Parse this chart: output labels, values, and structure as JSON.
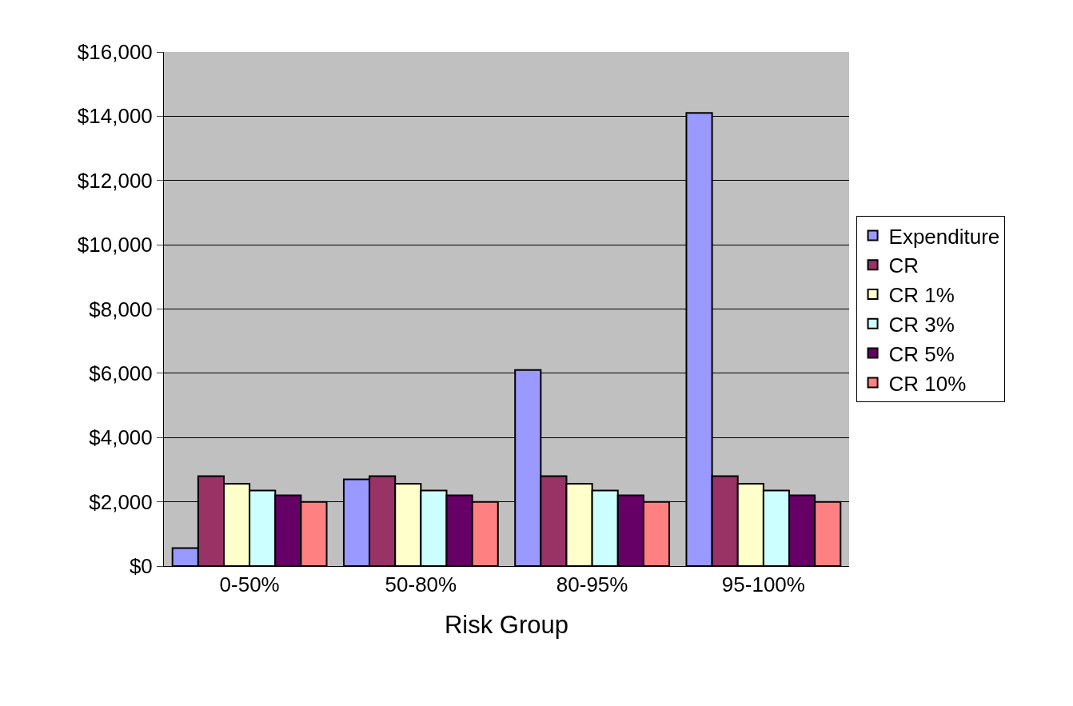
{
  "chart_data": {
    "type": "bar",
    "xlabel": "Risk Group",
    "categories": [
      "0-50%",
      "50-80%",
      "80-95%",
      "95-100%"
    ],
    "series": [
      {
        "name": "Expenditure",
        "color": "#9999ff",
        "values": [
          560,
          2700,
          6100,
          14100
        ]
      },
      {
        "name": "CR",
        "color": "#993366",
        "values": [
          2800,
          2800,
          2800,
          2800
        ]
      },
      {
        "name": "CR 1%",
        "color": "#ffffcc",
        "values": [
          2560,
          2560,
          2560,
          2560
        ]
      },
      {
        "name": "CR 3%",
        "color": "#ccffff",
        "values": [
          2350,
          2350,
          2350,
          2350
        ]
      },
      {
        "name": "CR 5%",
        "color": "#660066",
        "values": [
          2200,
          2200,
          2200,
          2200
        ]
      },
      {
        "name": "CR 10%",
        "color": "#ff8080",
        "values": [
          2000,
          2000,
          2000,
          2000
        ]
      }
    ],
    "ylim": [
      0,
      16000
    ],
    "yticks": [
      {
        "value": 0,
        "label": "$0"
      },
      {
        "value": 2000,
        "label": "$2,000"
      },
      {
        "value": 4000,
        "label": "$4,000"
      },
      {
        "value": 6000,
        "label": "$6,000"
      },
      {
        "value": 8000,
        "label": "$8,000"
      },
      {
        "value": 10000,
        "label": "$10,000"
      },
      {
        "value": 12000,
        "label": "$12,000"
      },
      {
        "value": 14000,
        "label": "$14,000"
      },
      {
        "value": 16000,
        "label": "$16,000"
      }
    ],
    "grid": "y",
    "legend": "right"
  }
}
